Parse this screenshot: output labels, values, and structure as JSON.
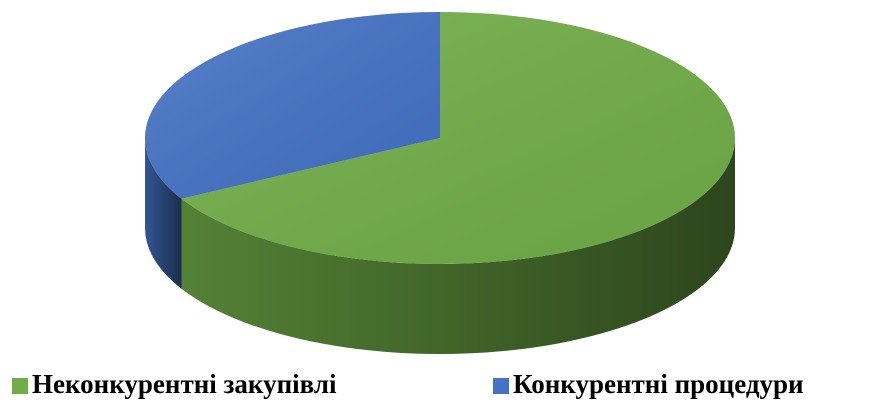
{
  "chart_data": {
    "type": "pie",
    "categories": [
      "Неконкурентні закупівлі",
      "Конкурентні процедури"
    ],
    "values": [
      67,
      33
    ],
    "colors": [
      "#70ad47",
      "#4472c4"
    ],
    "legend": "bottom"
  }
}
